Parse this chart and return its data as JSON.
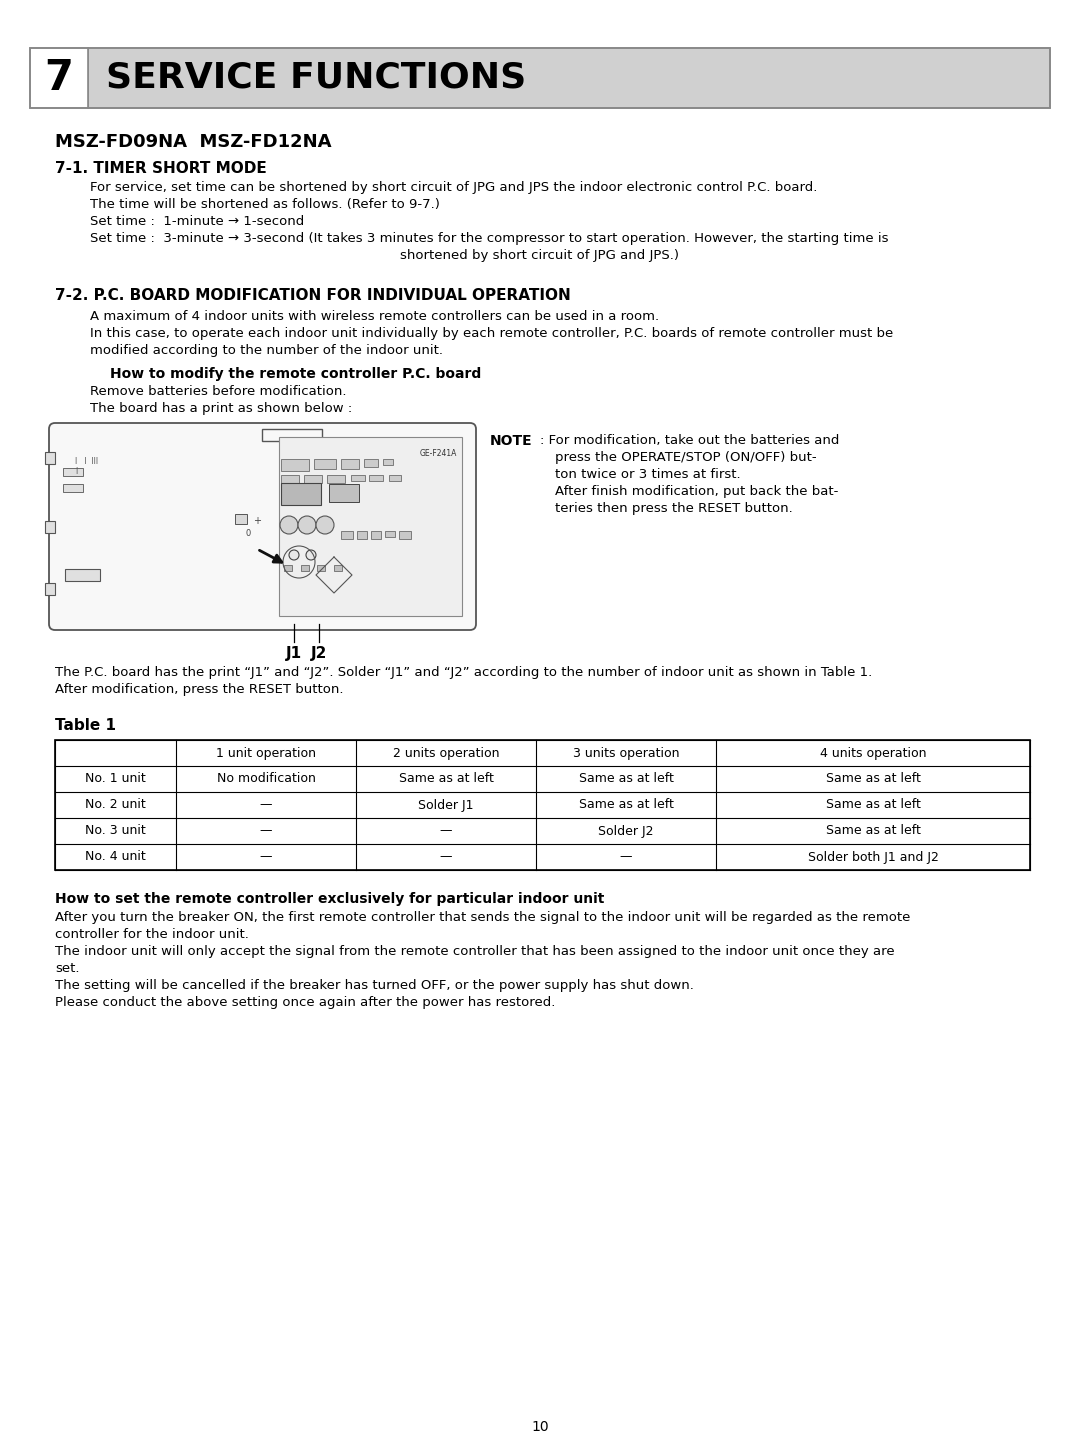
{
  "page_number": "10",
  "section_number": "7",
  "section_title": "SERVICE FUNCTIONS",
  "model_line": "MSZ-FD09NA  MSZ-FD12NA",
  "subsection1_title": "7-1. TIMER SHORT MODE",
  "subsection2_title": "7-2. P.C. BOARD MODIFICATION FOR INDIVIDUAL OPERATION",
  "how_to_title": "How to modify the remote controller P.C. board",
  "note_label": "NOTE",
  "table_title": "Table 1",
  "table_headers": [
    "",
    "1 unit operation",
    "2 units operation",
    "3 units operation",
    "4 units operation"
  ],
  "table_rows": [
    [
      "No. 1 unit",
      "No modification",
      "Same as at left",
      "Same as at left",
      "Same as at left"
    ],
    [
      "No. 2 unit",
      "—",
      "Solder J1",
      "Same as at left",
      "Same as at left"
    ],
    [
      "No. 3 unit",
      "—",
      "—",
      "Solder J2",
      "Same as at left"
    ],
    [
      "No. 4 unit",
      "—",
      "—",
      "—",
      "Solder both J1 and J2"
    ]
  ],
  "final_section_title": "How to set the remote controller exclusively for particular indoor unit",
  "bg_color": "#ffffff",
  "header_bg": "#d0d0d0",
  "header_border": "#888888",
  "text_color": "#000000"
}
